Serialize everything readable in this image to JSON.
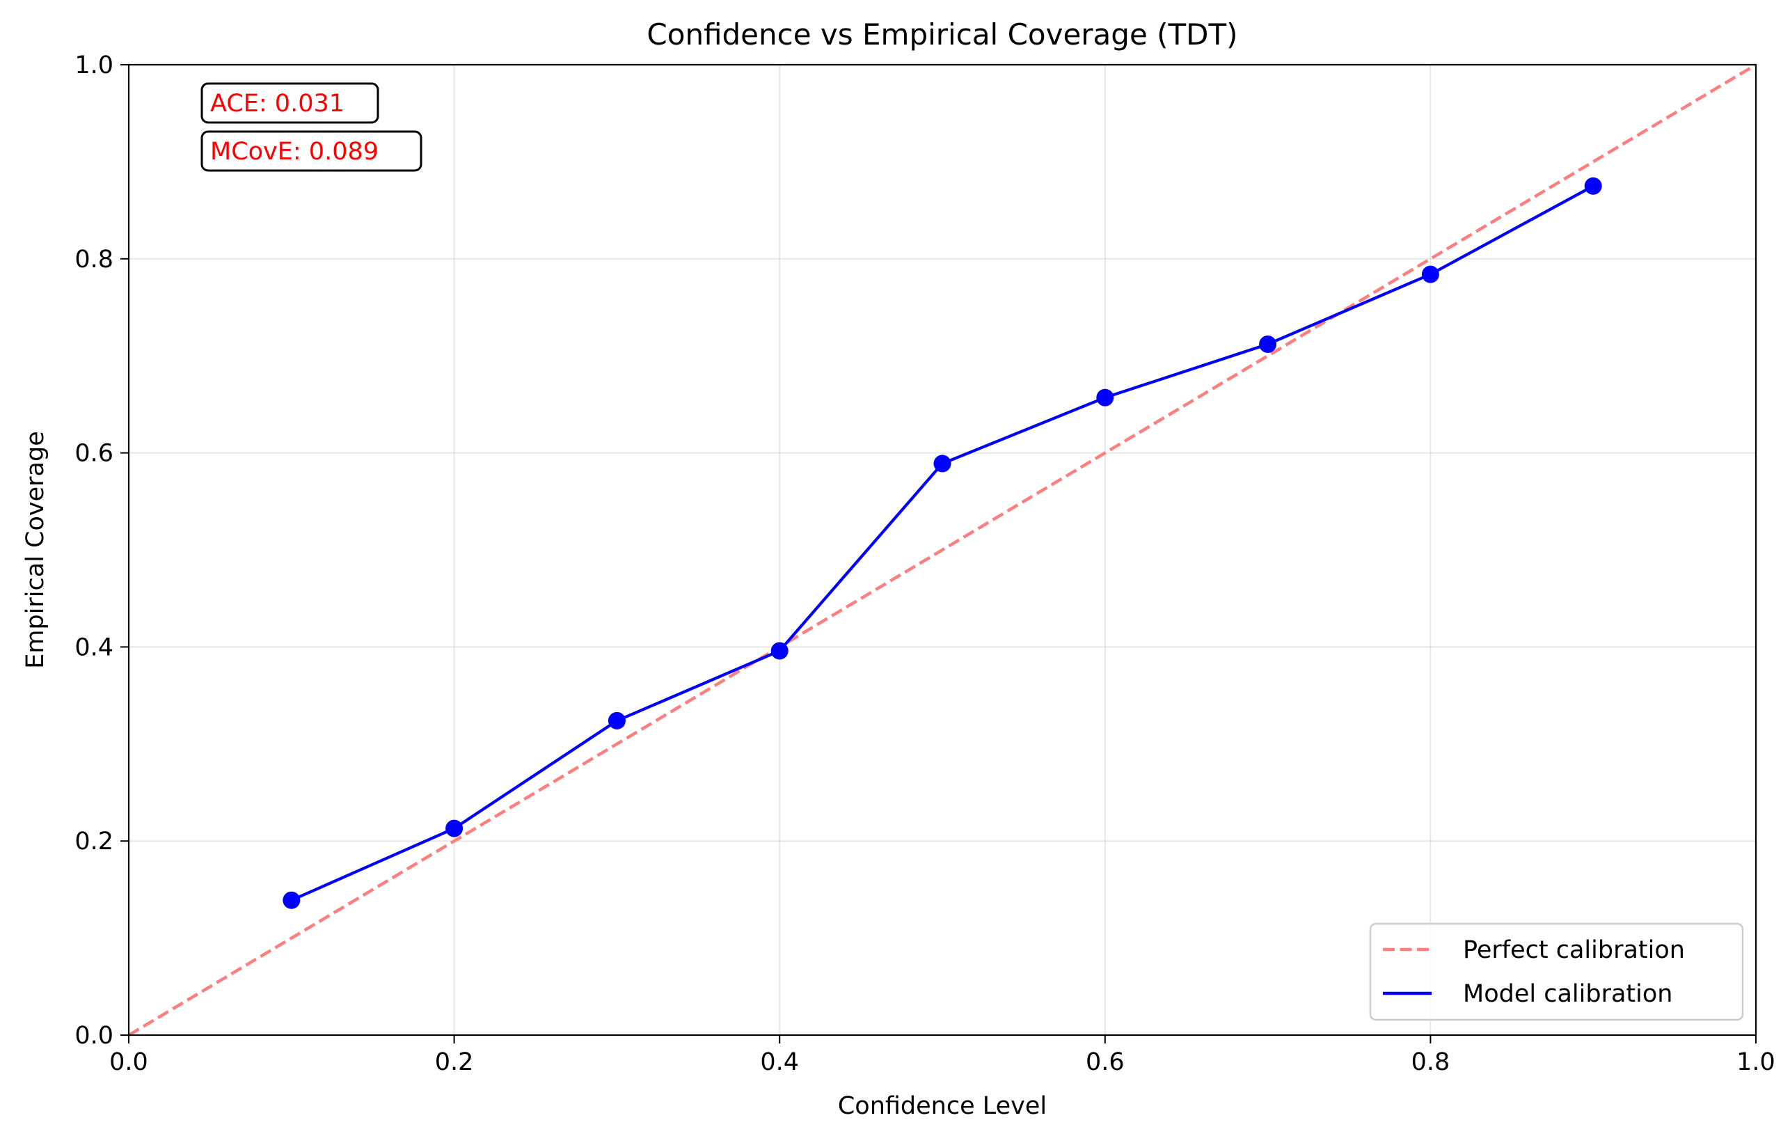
{
  "chart_data": {
    "type": "line",
    "title": "Confidence vs Empirical Coverage (TDT)",
    "xlabel": "Confidence Level",
    "ylabel": "Empirical Coverage",
    "xlim": [
      0.0,
      1.0
    ],
    "ylim": [
      0.0,
      1.0
    ],
    "xticks": [
      "0.0",
      "0.2",
      "0.4",
      "0.6",
      "0.8",
      "1.0"
    ],
    "yticks": [
      "0.0",
      "0.2",
      "0.4",
      "0.6",
      "0.8",
      "1.0"
    ],
    "grid": true,
    "legend_position": "lower-right",
    "series": [
      {
        "name": "Perfect calibration",
        "style": "dashed",
        "color": "#ff7f7f",
        "x": [
          0.0,
          1.0
        ],
        "y": [
          0.0,
          1.0
        ]
      },
      {
        "name": "Model calibration",
        "style": "solid-markers",
        "color": "#0000ff",
        "x": [
          0.1,
          0.2,
          0.3,
          0.4,
          0.5,
          0.6,
          0.7,
          0.8,
          0.9
        ],
        "y": [
          0.139,
          0.213,
          0.324,
          0.396,
          0.589,
          0.657,
          0.712,
          0.784,
          0.875
        ]
      }
    ],
    "annotations": [
      {
        "text": "ACE: 0.031",
        "color": "#ff0000"
      },
      {
        "text": "MCovE: 0.089",
        "color": "#ff0000"
      }
    ]
  }
}
